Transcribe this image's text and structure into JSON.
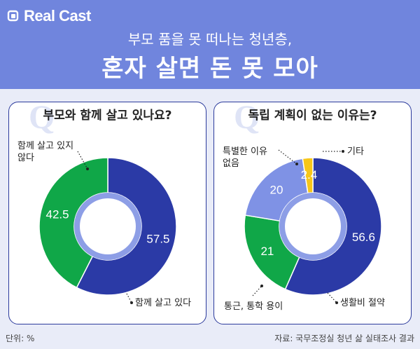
{
  "header": {
    "logo_text": "Real Cast",
    "subtitle": "부모 품을 못 떠나는 청년층,",
    "title": "혼자 살면 돈 못 모아"
  },
  "colors": {
    "blue": "#2b3aa6",
    "green": "#10a748",
    "light_blue": "#7f92e5",
    "yellow": "#f6c61a",
    "hole": "#8d9ee6"
  },
  "footer": {
    "unit": "단위: %",
    "source": "자료: 국무조정실 청년 삶 실태조사 결과"
  },
  "chart_data": [
    {
      "type": "pie",
      "title": "부모와 함께 살고 있나요?",
      "slices": [
        {
          "label": "함께 살고 있다",
          "value": 57.5,
          "color": "#2b3aa6"
        },
        {
          "label": "함께 살고 있지 않다",
          "value": 42.5,
          "color": "#10a748"
        }
      ]
    },
    {
      "type": "pie",
      "title": "독립 계획이 없는 이유는?",
      "slices": [
        {
          "label": "생활비 절약",
          "value": 56.6,
          "color": "#2b3aa6"
        },
        {
          "label": "통근, 통학 용이",
          "value": 21,
          "color": "#10a748"
        },
        {
          "label": "특별한 이유 없음",
          "value": 20,
          "color": "#7f92e5"
        },
        {
          "label": "기타",
          "value": 2.4,
          "color": "#f6c61a"
        }
      ]
    }
  ]
}
